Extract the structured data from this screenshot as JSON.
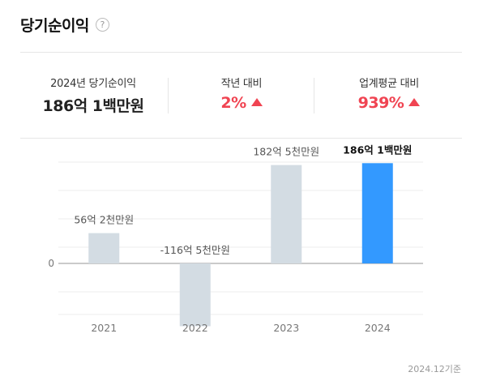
{
  "header": {
    "title": "당기순이익",
    "help_icon": "?"
  },
  "summary": {
    "current": {
      "label": "2024년 당기순이익",
      "value": "186억 1백만원"
    },
    "yoy": {
      "label": "작년 대비",
      "value": "2%",
      "direction": "up"
    },
    "industry": {
      "label": "업계평균 대비",
      "value": "939%",
      "direction": "up"
    }
  },
  "chart_data": {
    "type": "bar",
    "categories": [
      "2021",
      "2022",
      "2023",
      "2024"
    ],
    "values": [
      56.2,
      -116.5,
      182.5,
      186.01
    ],
    "data_labels": [
      "56억 2천만원",
      "-116억 5천만원",
      "182억 5천만원",
      "186억 1백만원"
    ],
    "highlight_index": 3,
    "y_tick_labels": [
      "0"
    ],
    "grid": true,
    "colors": {
      "default": "#d3dce3",
      "highlight": "#3399ff",
      "up": "#f04452"
    }
  },
  "footer": {
    "note": "2024.12기준"
  }
}
